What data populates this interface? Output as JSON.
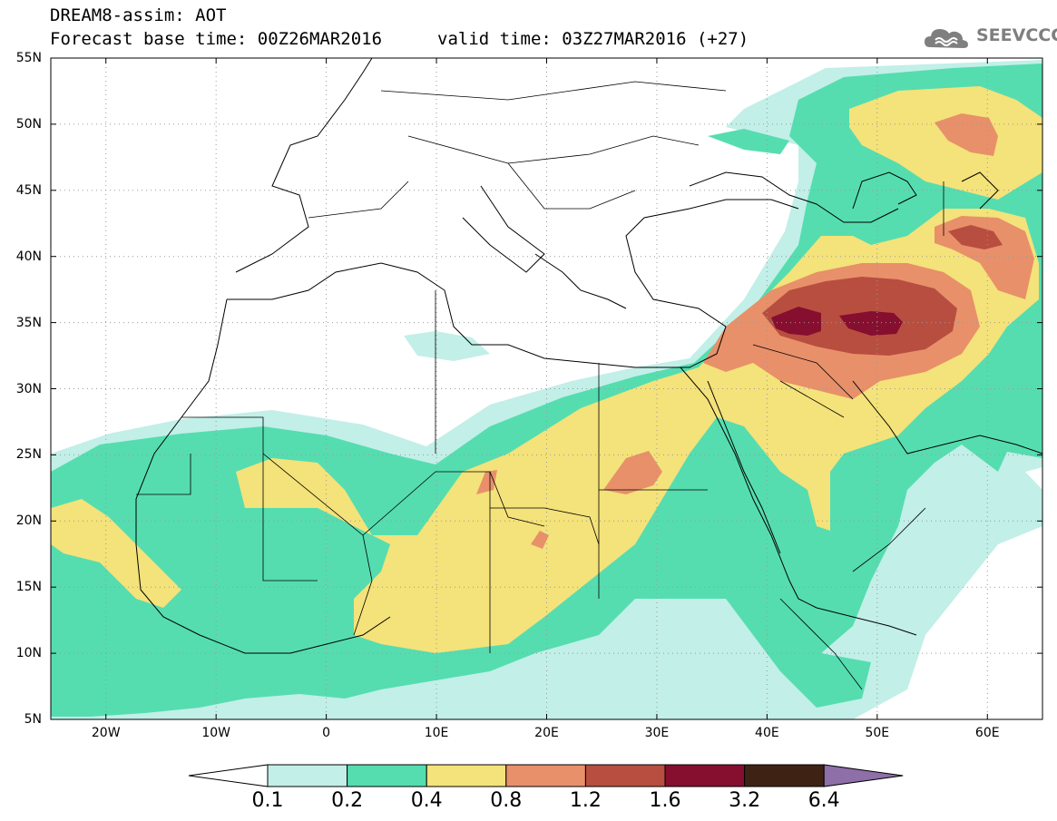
{
  "header": {
    "line1": "DREAM8-assim: AOT",
    "line2": "Forecast base time: 00Z26MAR2016",
    "line3": "valid time: 03Z27MAR2016 (+27)",
    "logo_text": "SEEVCCC",
    "logo_icon": "cloud-icon"
  },
  "map": {
    "variable": "AOT",
    "lat_range": [
      5,
      55
    ],
    "lon_range": [
      -25,
      65
    ],
    "lat_labels": [
      "55N",
      "50N",
      "45N",
      "40N",
      "35N",
      "30N",
      "25N",
      "20N",
      "15N",
      "10N",
      "5N"
    ],
    "lon_labels": [
      "20W",
      "10W",
      "0",
      "10E",
      "20E",
      "30E",
      "40E",
      "50E",
      "60E"
    ],
    "grid": true,
    "features": [
      "coastlines",
      "country-borders"
    ]
  },
  "colorbar": {
    "labels": [
      "0.1",
      "0.2",
      "0.4",
      "0.8",
      "1.2",
      "1.6",
      "3.2",
      "6.4"
    ],
    "colors": [
      "#ffffff",
      "#c2efe8",
      "#55ddb0",
      "#f4e27a",
      "#e8906a",
      "#b84e3f",
      "#860f2f",
      "#3e2315",
      "#8e6fa8"
    ]
  }
}
